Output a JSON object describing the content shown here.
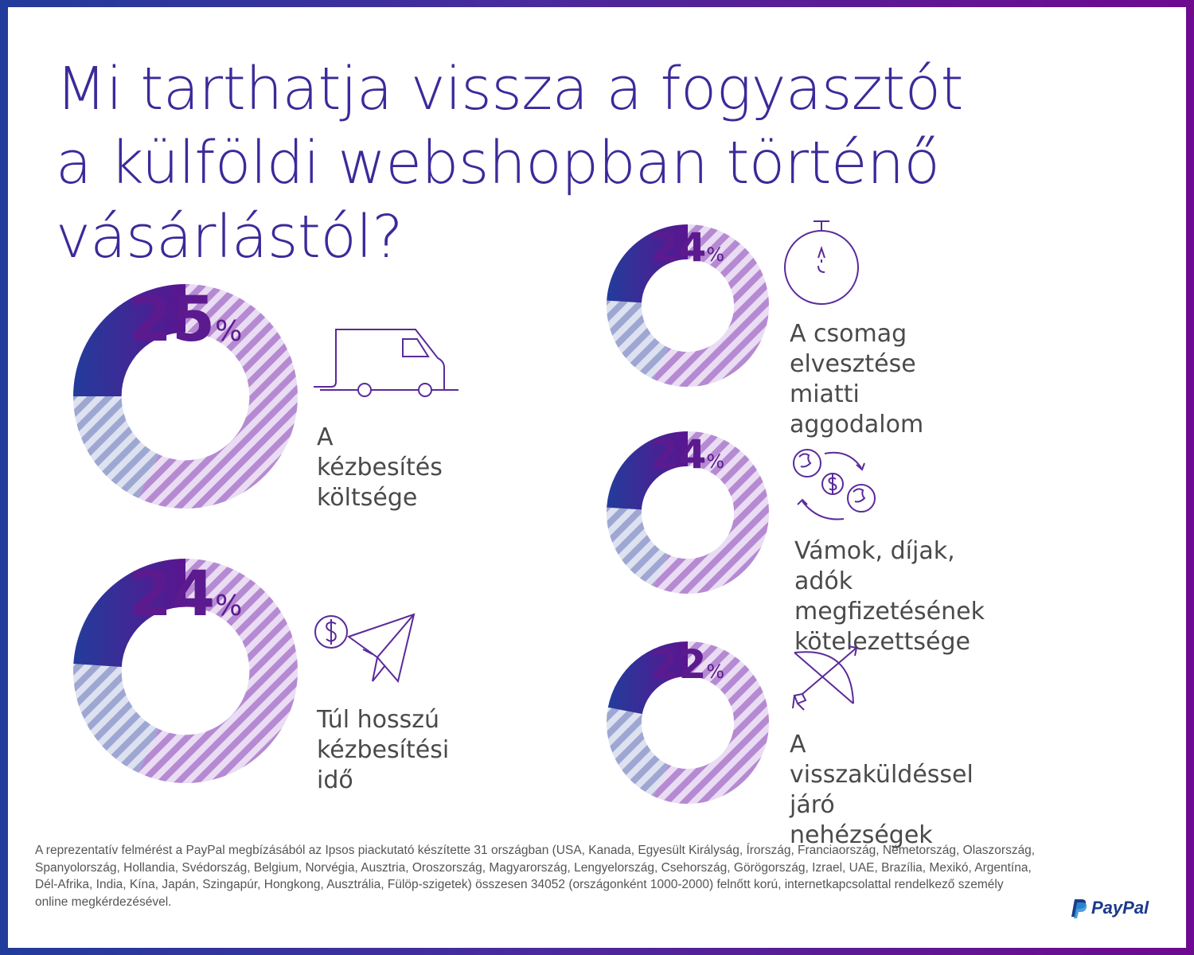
{
  "title": "Mi tarthatja vissza a fogyasztót\na külföldi webshopban történő\nvásárlástól?",
  "colors": {
    "accent_dark": "#3a2596",
    "accent_light": "#b58ad2",
    "gray_stripe": "#9da7d2",
    "text_purple": "#5c1a8f"
  },
  "chart_data": {
    "type": "pie",
    "unit": "%",
    "items": [
      {
        "value": 25,
        "label": "A kézbesítés\nköltsége",
        "icon": "delivery-van-icon"
      },
      {
        "value": 24,
        "label": "Túl hosszú\nkézbesítési idő",
        "icon": "paper-plane-dollar-icon"
      },
      {
        "value": 24,
        "label": "A csomag elvesztése\nmiatti aggodalom",
        "icon": "stopwatch-icon"
      },
      {
        "value": 24,
        "label": "Vámok, díjak, adók\nmegfizetésének\nkötelezettsége",
        "icon": "currency-exchange-icon"
      },
      {
        "value": 22,
        "label": "A visszaküldéssel járó\nnehézségek",
        "icon": "bow-arrow-icon"
      }
    ]
  },
  "footnote": "A reprezentatív felmérést a PayPal megbízásából az Ipsos piackutató készítette 31 országban (USA, Kanada, Egyesült Királyság, Írország, Franciaország, Németország, Olaszország, Spanyolország, Hollandia, Svédország, Belgium, Norvégia, Ausztria, Oroszország, Magyarország, Lengyelország, Csehország, Görögország, Izrael, UAE, Brazília, Mexikó, Argentína, Dél-Afrika, India, Kína, Japán, Szingapúr, Hongkong, Ausztrália, Fülöp-szigetek) összesen 34052 (országonként 1000-2000) felnőtt korú, internetkapcsolattal rendelkező személy online megkérdezésével.",
  "logo": {
    "text": "PayPal"
  }
}
